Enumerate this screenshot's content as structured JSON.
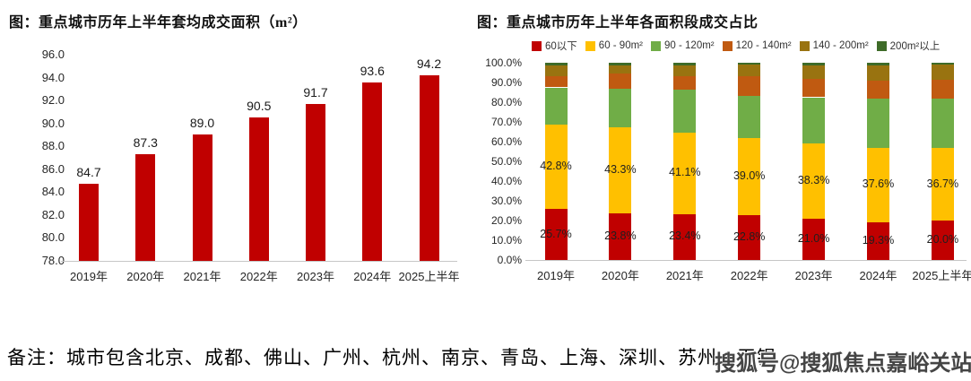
{
  "note": {
    "text": "备注：城市包含北京、成都、佛山、广州、杭州、南京、青岛、上海、深圳、苏州、无锡"
  },
  "watermark": "搜狐号@搜狐焦点嘉峪关站",
  "colors": {
    "bar_red": "#C00000",
    "yellow": "#FFC000",
    "green": "#70AD47",
    "orange": "#C05A11",
    "olive": "#997310",
    "dark_green": "#3E6B28",
    "axis_line": "#C6C6C6"
  },
  "chart_data": [
    {
      "type": "bar",
      "title": "图：重点城市历年上半年套均成交面积（m²）",
      "categories": [
        "2019年",
        "2020年",
        "2021年",
        "2022年",
        "2023年",
        "2024年",
        "2025上半年"
      ],
      "values": [
        84.7,
        87.3,
        89.0,
        90.5,
        91.7,
        93.6,
        94.2
      ],
      "data_labels": [
        "84.7",
        "87.3",
        "89.0",
        "90.5",
        "91.7",
        "93.6",
        "94.2"
      ],
      "ylim": [
        78.0,
        96.0
      ],
      "ytick_step": 2.0,
      "ytick_labels": [
        "96.0",
        "94.0",
        "92.0",
        "90.0",
        "88.0",
        "86.0",
        "84.0",
        "82.0",
        "80.0",
        "78.0"
      ],
      "bar_color": "#C00000",
      "grid": false,
      "legend": "none"
    },
    {
      "type": "stacked-bar-100",
      "title": "图：重点城市历年上半年各面积段成交占比",
      "categories": [
        "2019年",
        "2020年",
        "2021年",
        "2022年",
        "2023年",
        "2024年",
        "2025上半年"
      ],
      "series": [
        {
          "name": "60以下",
          "color": "#C00000",
          "values": [
            25.7,
            23.8,
            23.4,
            22.8,
            21.0,
            19.3,
            20.0
          ],
          "labels_shown": true
        },
        {
          "name": "60 - 90m²",
          "color": "#FFC000",
          "values": [
            42.8,
            43.3,
            41.1,
            39.0,
            38.3,
            37.6,
            36.7
          ],
          "labels_shown": true
        },
        {
          "name": "90 - 120m²",
          "color": "#70AD47",
          "values": [
            19.0,
            19.5,
            21.7,
            21.5,
            23.2,
            25.0,
            24.9
          ],
          "labels_shown": false
        },
        {
          "name": "120 - 140m²",
          "color": "#C05A11",
          "values": [
            5.8,
            8.0,
            6.9,
            10.0,
            9.1,
            8.8,
            9.8
          ],
          "labels_shown": false
        },
        {
          "name": "140 - 200m²",
          "color": "#997310",
          "values": [
            5.5,
            4.2,
            5.5,
            5.9,
            7.0,
            7.8,
            7.5
          ],
          "labels_shown": false
        },
        {
          "name": "200m²以上",
          "color": "#3E6B28",
          "values": [
            1.2,
            1.2,
            1.4,
            0.8,
            1.4,
            1.5,
            1.1
          ],
          "labels_shown": false
        }
      ],
      "ylim": [
        0,
        100
      ],
      "ytick_step": 10,
      "ytick_labels": [
        "100.0%",
        "90.0%",
        "80.0%",
        "70.0%",
        "60.0%",
        "50.0%",
        "40.0%",
        "30.0%",
        "20.0%",
        "10.0%",
        "0.0%"
      ],
      "grid": false,
      "legend_position": "top"
    }
  ]
}
